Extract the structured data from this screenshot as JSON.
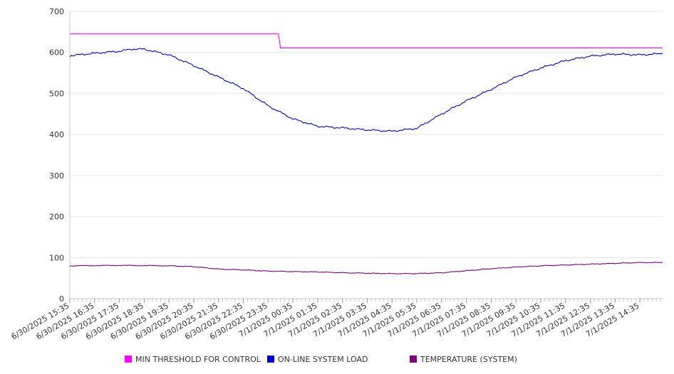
{
  "chart_data": {
    "type": "line",
    "title": "",
    "xlabel": "",
    "ylabel": "",
    "ylim": [
      0,
      700
    ],
    "y_ticks": [
      0,
      100,
      200,
      300,
      400,
      500,
      600,
      700
    ],
    "x_range": [
      "6/30/2025 15:35",
      "7/1/2025 15:30"
    ],
    "x_tick_labels": [
      "6/30/2025 15:35",
      "6/30/2025 16:35",
      "6/30/2025 17:35",
      "6/30/2025 18:35",
      "6/30/2025 19:35",
      "6/30/2025 20:35",
      "6/30/2025 21:35",
      "6/30/2025 22:35",
      "6/30/2025 23:35",
      "7/1/2025 00:35",
      "7/1/2025 01:35",
      "7/1/2025 02:35",
      "7/1/2025 03:35",
      "7/1/2025 04:35",
      "7/1/2025 05:35",
      "7/1/2025 06:35",
      "7/1/2025 07:35",
      "7/1/2025 08:35",
      "7/1/2025 09:35",
      "7/1/2025 10:35",
      "7/1/2025 11:35",
      "7/1/2025 12:35",
      "7/1/2025 13:35",
      "7/1/2025 14:35"
    ],
    "grid": "horizontal",
    "legend_position": "bottom",
    "series": [
      {
        "name": "MIN THRESHOLD FOR CONTROL",
        "color": "#ff00ff",
        "points": [
          [
            "6/30/2025 15:35",
            645
          ],
          [
            "7/1/2025 00:00",
            645
          ],
          [
            "7/1/2025 00:05",
            611
          ],
          [
            "7/1/2025 15:30",
            611
          ]
        ]
      },
      {
        "name": "ON-LINE SYSTEM LOAD",
        "color": "#0000cc",
        "points": [
          [
            "6/30/2025 15:35",
            592
          ],
          [
            "6/30/2025 16:35",
            598
          ],
          [
            "6/30/2025 17:35",
            603
          ],
          [
            "6/30/2025 18:05",
            608
          ],
          [
            "6/30/2025 18:35",
            608
          ],
          [
            "6/30/2025 19:35",
            594
          ],
          [
            "6/30/2025 20:35",
            568
          ],
          [
            "6/30/2025 21:35",
            540
          ],
          [
            "6/30/2025 22:35",
            512
          ],
          [
            "6/30/2025 23:35",
            470
          ],
          [
            "7/1/2025 00:35",
            438
          ],
          [
            "7/1/2025 01:35",
            420
          ],
          [
            "7/1/2025 02:35",
            416
          ],
          [
            "7/1/2025 03:35",
            411
          ],
          [
            "7/1/2025 04:35",
            408
          ],
          [
            "7/1/2025 05:35",
            415
          ],
          [
            "7/1/2025 06:35",
            450
          ],
          [
            "7/1/2025 07:35",
            482
          ],
          [
            "7/1/2025 08:35",
            510
          ],
          [
            "7/1/2025 09:35",
            540
          ],
          [
            "7/1/2025 10:35",
            562
          ],
          [
            "7/1/2025 11:35",
            580
          ],
          [
            "7/1/2025 12:35",
            591
          ],
          [
            "7/1/2025 13:35",
            596
          ],
          [
            "7/1/2025 14:35",
            594
          ],
          [
            "7/1/2025 15:30",
            597
          ]
        ]
      },
      {
        "name": "TEMPERATURE (SYSTEM)",
        "color": "#800080",
        "points": [
          [
            "6/30/2025 15:35",
            80
          ],
          [
            "6/30/2025 17:35",
            81
          ],
          [
            "6/30/2025 19:35",
            80
          ],
          [
            "6/30/2025 20:35",
            78
          ],
          [
            "6/30/2025 21:35",
            72
          ],
          [
            "6/30/2025 22:35",
            70
          ],
          [
            "6/30/2025 23:35",
            67
          ],
          [
            "7/1/2025 00:35",
            66
          ],
          [
            "7/1/2025 01:35",
            65
          ],
          [
            "7/1/2025 02:35",
            63
          ],
          [
            "7/1/2025 03:35",
            62
          ],
          [
            "7/1/2025 04:35",
            61
          ],
          [
            "7/1/2025 05:35",
            61
          ],
          [
            "7/1/2025 06:35",
            63
          ],
          [
            "7/1/2025 07:35",
            68
          ],
          [
            "7/1/2025 08:35",
            73
          ],
          [
            "7/1/2025 09:35",
            77
          ],
          [
            "7/1/2025 10:35",
            80
          ],
          [
            "7/1/2025 11:35",
            82
          ],
          [
            "7/1/2025 12:35",
            84
          ],
          [
            "7/1/2025 13:35",
            86
          ],
          [
            "7/1/2025 14:35",
            88
          ],
          [
            "7/1/2025 15:30",
            88
          ]
        ]
      }
    ]
  }
}
